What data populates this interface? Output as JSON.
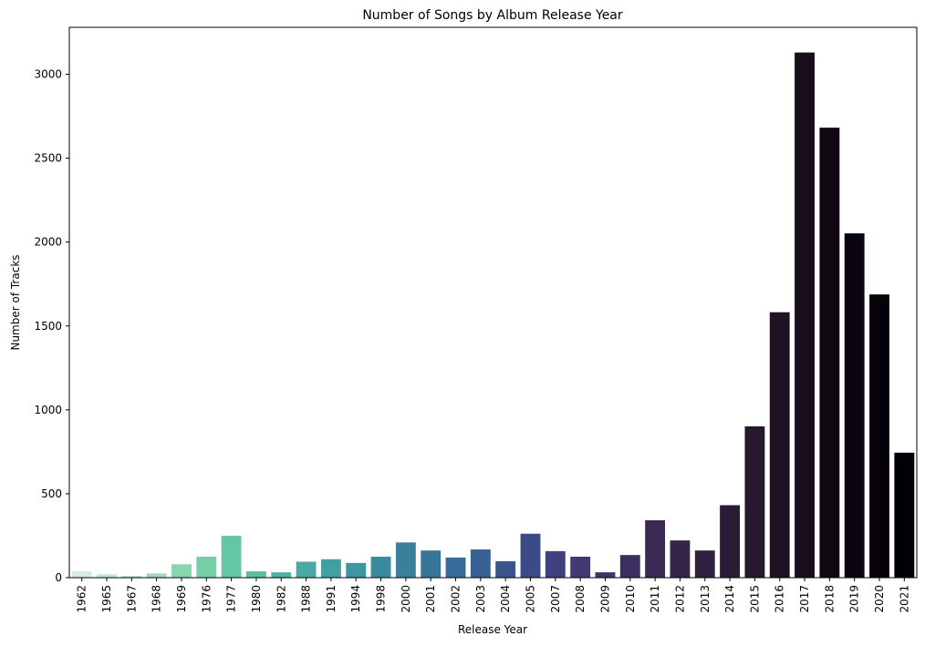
{
  "chart_data": {
    "type": "bar",
    "title": "Number of Songs by Album Release Year",
    "xlabel": "Release Year",
    "ylabel": "Number of Tracks",
    "ylim": [
      0,
      3280
    ],
    "yticks": [
      0,
      500,
      1000,
      1500,
      2000,
      2500,
      3000
    ],
    "grid": false,
    "legend": "none",
    "categories": [
      "1962",
      "1965",
      "1967",
      "1968",
      "1969",
      "1976",
      "1977",
      "1980",
      "1982",
      "1988",
      "1991",
      "1994",
      "1998",
      "2000",
      "2001",
      "2002",
      "2003",
      "2004",
      "2005",
      "2007",
      "2008",
      "2009",
      "2010",
      "2011",
      "2012",
      "2013",
      "2014",
      "2015",
      "2016",
      "2017",
      "2018",
      "2019",
      "2020",
      "2021"
    ],
    "values": [
      38,
      20,
      10,
      25,
      80,
      125,
      250,
      38,
      32,
      95,
      110,
      88,
      125,
      210,
      162,
      120,
      168,
      98,
      262,
      158,
      125,
      32,
      135,
      342,
      222,
      162,
      432,
      902,
      1582,
      3130,
      2682,
      2052,
      1688,
      745
    ],
    "colors": [
      "#d4eedb",
      "#c0e8cd",
      "#ade3c0",
      "#9adcb6",
      "#88d6ae",
      "#76cfa8",
      "#65c6a5",
      "#58bea5",
      "#4fb4a4",
      "#48aaa3",
      "#43a0a2",
      "#3f95a0",
      "#3b8b9e",
      "#39809c",
      "#37769a",
      "#366b97",
      "#376093",
      "#39558f",
      "#3d4a88",
      "#41417f",
      "#433a73",
      "#413468",
      "#3d2f5d",
      "#3a2a53",
      "#352649",
      "#30213f",
      "#2b1c36",
      "#25172c",
      "#1e1224",
      "#170d1b",
      "#110814",
      "#0c040e",
      "#07020a",
      "#030005"
    ]
  }
}
